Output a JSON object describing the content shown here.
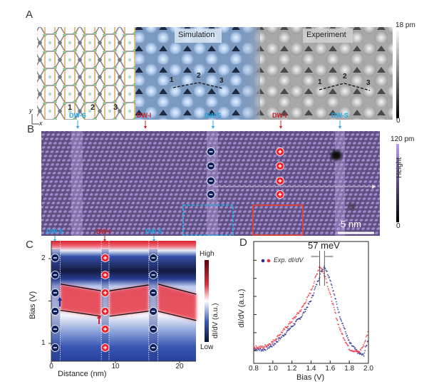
{
  "panels": {
    "A": {
      "label": "A",
      "simulation_label": "Simulation",
      "experiment_label": "Experiment",
      "colorbar_max": "18 pm",
      "colorbar_min": "0",
      "site_labels": [
        "1",
        "2",
        "3"
      ],
      "axis_y": "y",
      "axis_x": "x"
    },
    "B": {
      "label": "B",
      "domain_walls": [
        "DW-S",
        "DW-I",
        "DW-S",
        "DW-I",
        "DW-S"
      ],
      "colorbar_max": "120 pm",
      "colorbar_min": "0",
      "colorbar_title": "Height",
      "scale_bar": "5 nm",
      "colors": {
        "dw_s": "#1ea7e8",
        "dw_i": "#c81e24",
        "negative": "#0d1f5c",
        "positive": "#f0202a",
        "surface": "#7a68a8"
      }
    },
    "C": {
      "label": "C",
      "domain_walls": [
        "DW-S",
        "DW-I",
        "DW-S"
      ],
      "xlabel": "Distance (nm)",
      "ylabel": "Bias (V)",
      "colorbar_title": "dI/dV (a.u.)",
      "colorbar_max": "High",
      "colorbar_min": "Low"
    },
    "D": {
      "label": "D",
      "annotation": "57 meV",
      "legend": "Exp. dI/dV"
    }
  },
  "chart_data": [
    {
      "type": "heatmap",
      "xlabel": "Distance (nm)",
      "ylabel": "Bias (V)",
      "xlim": [
        0,
        22.6
      ],
      "ylim": [
        0.79,
        2.21
      ],
      "xticks": [
        "0",
        "10",
        "20"
      ],
      "yticks": [
        "1",
        "2"
      ],
      "colorbar": [
        "Low",
        "High"
      ],
      "domain_wall_strips_nm": [
        [
          0,
          1.4
        ],
        [
          7.8,
          9.0
        ],
        [
          15.2,
          16.6
        ]
      ],
      "band_edges": [
        {
          "x": [
            1.4,
            7.8
          ],
          "upper": [
            1.7,
            1.62
          ],
          "lower": [
            1.39,
            1.32
          ]
        },
        {
          "x": [
            9.0,
            15.2
          ],
          "upper": [
            1.62,
            1.69
          ],
          "lower": [
            1.32,
            1.38
          ]
        },
        {
          "x": [
            16.6,
            22.6
          ],
          "upper": [
            1.7,
            1.58
          ],
          "lower": [
            1.38,
            1.27
          ]
        }
      ]
    },
    {
      "type": "scatter",
      "xlabel": "Bias (V)",
      "ylabel": "dI/dV (a.u.)",
      "xlim": [
        0.8,
        2.0
      ],
      "ylim": [
        0,
        1.1
      ],
      "xticks": [
        "0.8",
        "1.0",
        "1.2",
        "1.4",
        "1.6",
        "1.8",
        "2.0"
      ],
      "legend": "Exp. dI/dV",
      "series": [
        {
          "color": "#2a2f8f",
          "peak": 1.54,
          "x": [
            0.8,
            0.9,
            1.0,
            1.1,
            1.2,
            1.3,
            1.4,
            1.5,
            1.54,
            1.6,
            1.7,
            1.8,
            1.9,
            1.95,
            2.0
          ],
          "y": [
            0.08,
            0.07,
            0.12,
            0.22,
            0.33,
            0.44,
            0.62,
            0.92,
            1.0,
            0.85,
            0.45,
            0.15,
            0.03,
            0.01,
            0.2
          ]
        },
        {
          "color": "#f03040",
          "peak": 1.49,
          "x": [
            0.8,
            0.9,
            1.0,
            1.1,
            1.2,
            1.3,
            1.4,
            1.49,
            1.55,
            1.6,
            1.7,
            1.8,
            1.9,
            1.95,
            2.0
          ],
          "y": [
            0.1,
            0.1,
            0.16,
            0.27,
            0.39,
            0.52,
            0.72,
            1.0,
            0.88,
            0.68,
            0.3,
            0.08,
            0.04,
            0.12,
            0.28
          ]
        }
      ]
    }
  ]
}
